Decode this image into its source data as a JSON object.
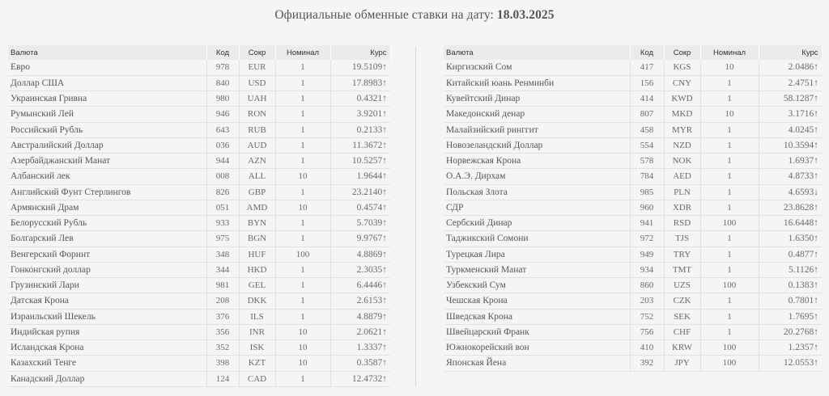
{
  "header": {
    "title_prefix": "Официальные обменные ставки на дату: ",
    "date": "18.03.2025"
  },
  "columns": {
    "name": "Валюта",
    "code": "Код",
    "abbr": "Сокр",
    "nominal": "Номинал",
    "rate": "Курс"
  },
  "trend_colors": {
    "up": "#2aa84a",
    "down": "#e8561b"
  },
  "left_table": [
    {
      "name": "Евро",
      "code": "978",
      "abbr": "EUR",
      "nominal": "1",
      "rate": "19.5109",
      "trend": "up"
    },
    {
      "name": "Доллар США",
      "code": "840",
      "abbr": "USD",
      "nominal": "1",
      "rate": "17.8983",
      "trend": "up"
    },
    {
      "name": "Украинская Гривна",
      "code": "980",
      "abbr": "UAH",
      "nominal": "1",
      "rate": "0.4321",
      "trend": "up"
    },
    {
      "name": "Румынский Лей",
      "code": "946",
      "abbr": "RON",
      "nominal": "1",
      "rate": "3.9201",
      "trend": "up"
    },
    {
      "name": "Российский Рубль",
      "code": "643",
      "abbr": "RUB",
      "nominal": "1",
      "rate": "0.2133",
      "trend": "up"
    },
    {
      "name": "Австралийский Доллар",
      "code": "036",
      "abbr": "AUD",
      "nominal": "1",
      "rate": "11.3672",
      "trend": "up"
    },
    {
      "name": "Азербайджанский Манат",
      "code": "944",
      "abbr": "AZN",
      "nominal": "1",
      "rate": "10.5257",
      "trend": "up"
    },
    {
      "name": "Албанский лек",
      "code": "008",
      "abbr": "ALL",
      "nominal": "10",
      "rate": "1.9644",
      "trend": "up"
    },
    {
      "name": "Английский Фунт Стерлингов",
      "code": "826",
      "abbr": "GBP",
      "nominal": "1",
      "rate": "23.2140",
      "trend": "up"
    },
    {
      "name": "Армянский Драм",
      "code": "051",
      "abbr": "AMD",
      "nominal": "10",
      "rate": "0.4574",
      "trend": "up"
    },
    {
      "name": "Белорусский Рубль",
      "code": "933",
      "abbr": "BYN",
      "nominal": "1",
      "rate": "5.7039",
      "trend": "up"
    },
    {
      "name": "Болгарский Лев",
      "code": "975",
      "abbr": "BGN",
      "nominal": "1",
      "rate": "9.9767",
      "trend": "up"
    },
    {
      "name": "Венгерский Форинт",
      "code": "348",
      "abbr": "HUF",
      "nominal": "100",
      "rate": "4.8869",
      "trend": "up"
    },
    {
      "name": "Гонконгский доллар",
      "code": "344",
      "abbr": "HKD",
      "nominal": "1",
      "rate": "2.3035",
      "trend": "up"
    },
    {
      "name": "Грузинский Лари",
      "code": "981",
      "abbr": "GEL",
      "nominal": "1",
      "rate": "6.4446",
      "trend": "up"
    },
    {
      "name": "Датская Крона",
      "code": "208",
      "abbr": "DKK",
      "nominal": "1",
      "rate": "2.6153",
      "trend": "up"
    },
    {
      "name": "Израильский Шекель",
      "code": "376",
      "abbr": "ILS",
      "nominal": "1",
      "rate": "4.8879",
      "trend": "up"
    },
    {
      "name": "Индийская рупия",
      "code": "356",
      "abbr": "INR",
      "nominal": "10",
      "rate": "2.0621",
      "trend": "up"
    },
    {
      "name": "Исландская Крона",
      "code": "352",
      "abbr": "ISK",
      "nominal": "10",
      "rate": "1.3337",
      "trend": "up"
    },
    {
      "name": "Казахский Тенге",
      "code": "398",
      "abbr": "KZT",
      "nominal": "10",
      "rate": "0.3587",
      "trend": "up"
    },
    {
      "name": "Канадский Доллар",
      "code": "124",
      "abbr": "CAD",
      "nominal": "1",
      "rate": "12.4732",
      "trend": "up"
    }
  ],
  "right_table": [
    {
      "name": "Киргизский Сом",
      "code": "417",
      "abbr": "KGS",
      "nominal": "10",
      "rate": "2.0486",
      "trend": "up"
    },
    {
      "name": "Китайский юань Ренминби",
      "code": "156",
      "abbr": "CNY",
      "nominal": "1",
      "rate": "2.4751",
      "trend": "up"
    },
    {
      "name": "Кувейтский Динар",
      "code": "414",
      "abbr": "KWD",
      "nominal": "1",
      "rate": "58.1287",
      "trend": "up"
    },
    {
      "name": "Македонский денар",
      "code": "807",
      "abbr": "MKD",
      "nominal": "10",
      "rate": "3.1716",
      "trend": "up"
    },
    {
      "name": "Малайзийский ринггит",
      "code": "458",
      "abbr": "MYR",
      "nominal": "1",
      "rate": "4.0245",
      "trend": "up"
    },
    {
      "name": "Новозеландский Доллар",
      "code": "554",
      "abbr": "NZD",
      "nominal": "1",
      "rate": "10.3594",
      "trend": "up"
    },
    {
      "name": "Норвежская Крона",
      "code": "578",
      "abbr": "NOK",
      "nominal": "1",
      "rate": "1.6937",
      "trend": "up"
    },
    {
      "name": "О.А.Э. Дирхам",
      "code": "784",
      "abbr": "AED",
      "nominal": "1",
      "rate": "4.8733",
      "trend": "up"
    },
    {
      "name": "Польская Злота",
      "code": "985",
      "abbr": "PLN",
      "nominal": "1",
      "rate": "4.6593",
      "trend": "down"
    },
    {
      "name": "СДР",
      "code": "960",
      "abbr": "XDR",
      "nominal": "1",
      "rate": "23.8628",
      "trend": "up"
    },
    {
      "name": "Сербский Динар",
      "code": "941",
      "abbr": "RSD",
      "nominal": "100",
      "rate": "16.6448",
      "trend": "up"
    },
    {
      "name": "Таджикский Сомони",
      "code": "972",
      "abbr": "TJS",
      "nominal": "1",
      "rate": "1.6350",
      "trend": "up"
    },
    {
      "name": "Турецкая Лира",
      "code": "949",
      "abbr": "TRY",
      "nominal": "1",
      "rate": "0.4877",
      "trend": "up"
    },
    {
      "name": "Туркменский Манат",
      "code": "934",
      "abbr": "TMT",
      "nominal": "1",
      "rate": "5.1126",
      "trend": "up"
    },
    {
      "name": "Узбекский Сум",
      "code": "860",
      "abbr": "UZS",
      "nominal": "100",
      "rate": "0.1383",
      "trend": "up"
    },
    {
      "name": "Чешская Крона",
      "code": "203",
      "abbr": "CZK",
      "nominal": "1",
      "rate": "0.7801",
      "trend": "up"
    },
    {
      "name": "Шведская Крона",
      "code": "752",
      "abbr": "SEK",
      "nominal": "1",
      "rate": "1.7695",
      "trend": "up"
    },
    {
      "name": "Швейцарский Франк",
      "code": "756",
      "abbr": "CHF",
      "nominal": "1",
      "rate": "20.2768",
      "trend": "up"
    },
    {
      "name": "Южнокорейский вон",
      "code": "410",
      "abbr": "KRW",
      "nominal": "100",
      "rate": "1.2357",
      "trend": "up"
    },
    {
      "name": "Японская Йена",
      "code": "392",
      "abbr": "JPY",
      "nominal": "100",
      "rate": "12.0553",
      "trend": "up"
    }
  ]
}
